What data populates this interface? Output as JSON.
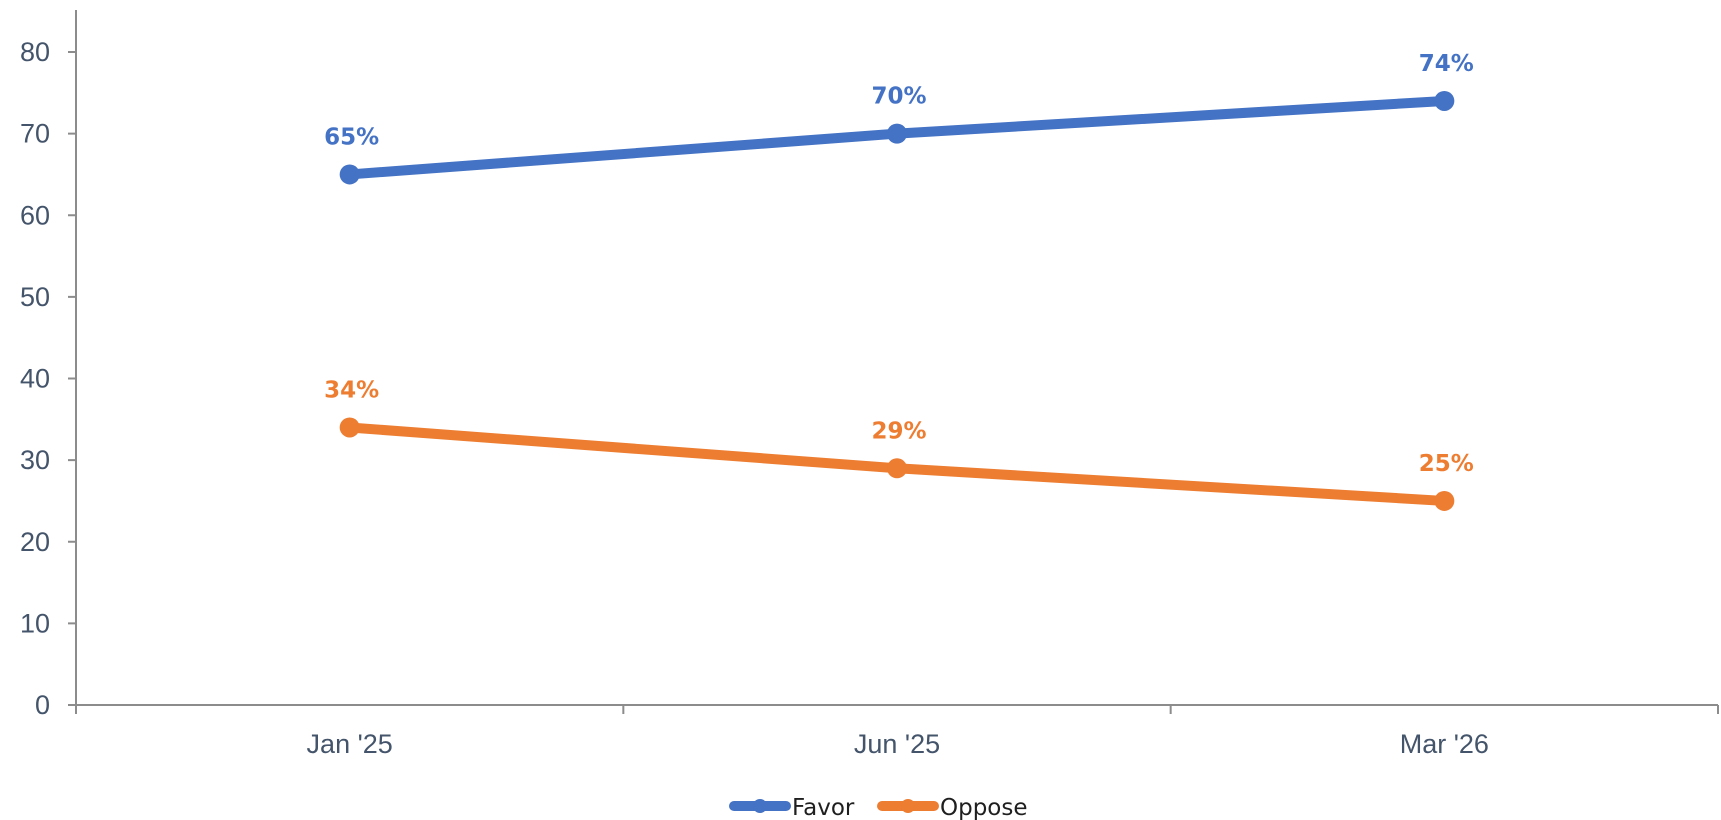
{
  "chart_data": {
    "type": "line",
    "categories": [
      "Jan '25",
      "Jun '25",
      "Mar '26"
    ],
    "series": [
      {
        "name": "Favor",
        "values": [
          65,
          70,
          74
        ],
        "labels": [
          "65%",
          "70%",
          "74%"
        ],
        "color": "#4472c4"
      },
      {
        "name": "Oppose",
        "values": [
          34,
          29,
          25
        ],
        "labels": [
          "34%",
          "29%",
          "25%"
        ],
        "color": "#ed7d31"
      }
    ],
    "title": "",
    "xlabel": "",
    "ylabel": "",
    "ylim": [
      0,
      80
    ],
    "yticks": [
      0,
      10,
      20,
      30,
      40,
      50,
      60,
      70,
      80
    ],
    "grid": false,
    "legend_position": "bottom",
    "axis_color": "#8c8c8c",
    "tick_label_color": "#44546a"
  }
}
